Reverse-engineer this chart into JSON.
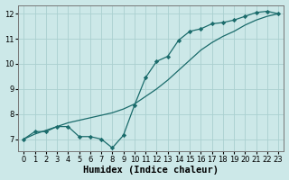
{
  "xlabel": "Humidex (Indice chaleur)",
  "ylabel": "",
  "bg_color": "#cce8e8",
  "grid_color": "#aad0d0",
  "line_color": "#1a6b6b",
  "line1_x": [
    0,
    1,
    2,
    3,
    4,
    5,
    6,
    7,
    8,
    9,
    10,
    11,
    12,
    13,
    14,
    15,
    16,
    17,
    18,
    19,
    20,
    21,
    22,
    23
  ],
  "line1_y": [
    7.0,
    7.3,
    7.3,
    7.5,
    7.5,
    7.1,
    7.1,
    7.0,
    6.65,
    7.15,
    8.35,
    9.45,
    10.1,
    10.3,
    10.95,
    11.3,
    11.4,
    11.6,
    11.65,
    11.75,
    11.9,
    12.05,
    12.1,
    12.0
  ],
  "line2_x": [
    0,
    1,
    2,
    3,
    4,
    5,
    6,
    7,
    8,
    9,
    10,
    11,
    12,
    13,
    14,
    15,
    16,
    17,
    18,
    19,
    20,
    21,
    22,
    23
  ],
  "line2_y": [
    7.0,
    7.2,
    7.35,
    7.5,
    7.65,
    7.75,
    7.85,
    7.95,
    8.05,
    8.2,
    8.4,
    8.7,
    9.0,
    9.35,
    9.75,
    10.15,
    10.55,
    10.85,
    11.1,
    11.3,
    11.55,
    11.75,
    11.9,
    12.0
  ],
  "xlim": [
    -0.5,
    23.5
  ],
  "ylim": [
    6.5,
    12.35
  ],
  "yticks": [
    7,
    8,
    9,
    10,
    11,
    12
  ],
  "xticks": [
    0,
    1,
    2,
    3,
    4,
    5,
    6,
    7,
    8,
    9,
    10,
    11,
    12,
    13,
    14,
    15,
    16,
    17,
    18,
    19,
    20,
    21,
    22,
    23
  ],
  "marker": "D",
  "marker_size": 2.2,
  "line_width": 0.9,
  "tick_fontsize": 6,
  "xlabel_fontsize": 7.5
}
